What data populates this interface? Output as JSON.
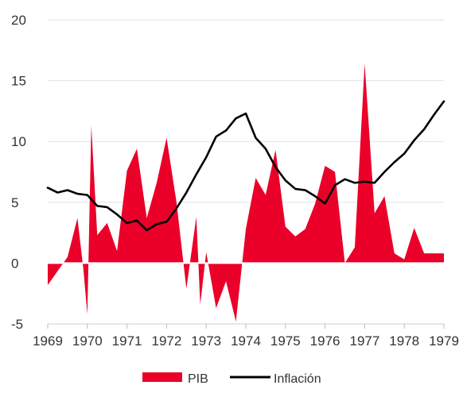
{
  "chart_data": {
    "type": "area",
    "x_ticks": [
      "1969",
      "1970",
      "1971",
      "1972",
      "1973",
      "1974",
      "1975",
      "1976",
      "1977",
      "1978",
      "1979"
    ],
    "y_ticks": [
      "20",
      "15",
      "10",
      "5",
      "0",
      "-5"
    ],
    "xlim": [
      1969,
      1979
    ],
    "ylim": [
      -5,
      20
    ],
    "grid": "horizontal",
    "legend": "bottom-center",
    "series": [
      {
        "name": "PIB",
        "kind": "area",
        "color": "#ea0029",
        "x": [
          1969.0,
          1969.5,
          1969.75,
          1969.9,
          1970.0,
          1970.1,
          1970.25,
          1970.5,
          1970.75,
          1971.0,
          1971.25,
          1971.5,
          1971.75,
          1972.0,
          1972.25,
          1972.5,
          1972.75,
          1972.85,
          1973.0,
          1973.25,
          1973.5,
          1973.75,
          1974.0,
          1974.25,
          1974.5,
          1974.75,
          1975.0,
          1975.25,
          1975.5,
          1975.75,
          1976.0,
          1976.25,
          1976.5,
          1976.75,
          1977.0,
          1977.25,
          1977.5,
          1977.75,
          1978.0,
          1978.25,
          1978.5,
          1978.75,
          1979.0
        ],
        "values": [
          -1.8,
          0.5,
          3.7,
          -0.5,
          -4.2,
          11.3,
          2.3,
          3.3,
          1.0,
          7.6,
          9.4,
          3.7,
          6.6,
          10.3,
          5.0,
          -2.1,
          3.8,
          -3.4,
          0.9,
          -3.7,
          -1.5,
          -4.8,
          2.8,
          7.0,
          5.6,
          9.3,
          3.0,
          2.2,
          2.8,
          4.9,
          8.0,
          7.5,
          0.0,
          1.3,
          16.4,
          4.1,
          5.5,
          0.8,
          0.3,
          2.9,
          0.8,
          0.8,
          0.8
        ]
      },
      {
        "name": "Inflación",
        "kind": "line",
        "color": "#000000",
        "x": [
          1969.0,
          1969.25,
          1969.5,
          1969.75,
          1970.0,
          1970.25,
          1970.5,
          1970.75,
          1971.0,
          1971.25,
          1971.5,
          1971.75,
          1972.0,
          1972.25,
          1972.5,
          1972.75,
          1973.0,
          1973.25,
          1973.5,
          1973.75,
          1974.0,
          1974.25,
          1974.5,
          1974.75,
          1975.0,
          1975.25,
          1975.5,
          1975.75,
          1976.0,
          1976.25,
          1976.5,
          1976.75,
          1977.0,
          1977.25,
          1977.5,
          1977.75,
          1978.0,
          1978.25,
          1978.5,
          1978.75,
          1979.0
        ],
        "values": [
          6.2,
          5.8,
          6.0,
          5.7,
          5.6,
          4.7,
          4.6,
          4.0,
          3.3,
          3.5,
          2.7,
          3.2,
          3.4,
          4.5,
          5.8,
          7.3,
          8.7,
          10.4,
          10.9,
          11.9,
          12.3,
          10.3,
          9.4,
          7.9,
          6.8,
          6.1,
          6.0,
          5.5,
          4.9,
          6.4,
          6.9,
          6.6,
          6.7,
          6.6,
          7.5,
          8.3,
          9.0,
          10.1,
          11.0,
          12.2,
          13.3
        ]
      }
    ]
  }
}
